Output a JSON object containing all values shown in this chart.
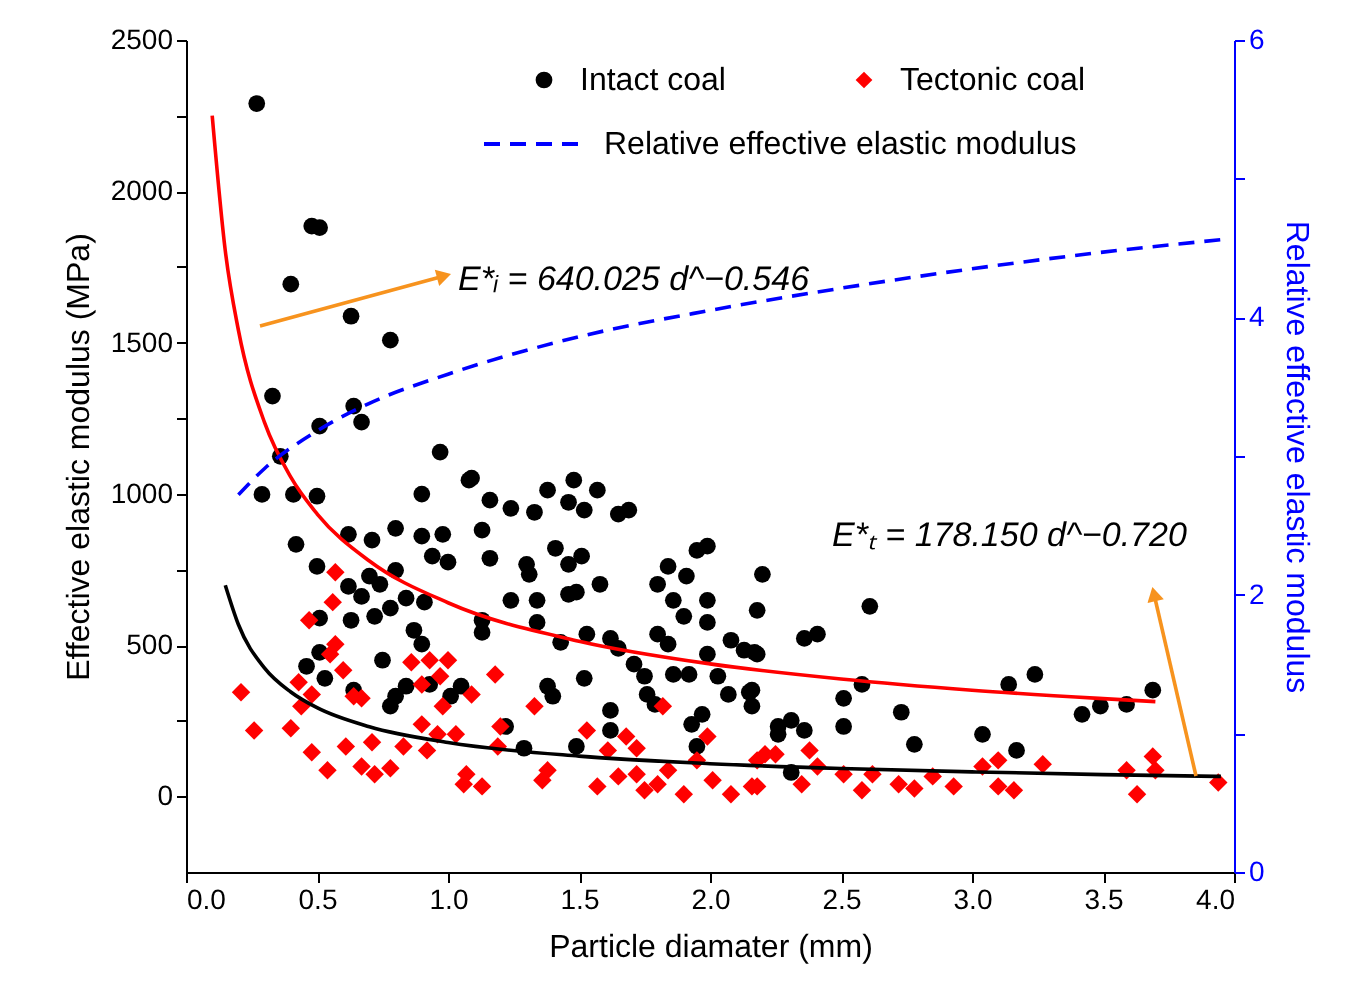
{
  "chart_data": {
    "type": "scatter",
    "xlabel": "Particle diamater (mm)",
    "ylabel": "Effective elastic modulus (MPa)",
    "y2label": "Relative effective elastic modulus",
    "xlim": [
      0,
      4
    ],
    "ylim": [
      -250,
      2500
    ],
    "y2lim": [
      0,
      6
    ],
    "xticks": [
      {
        "value": 0,
        "label": "0.0"
      },
      {
        "value": 0.5,
        "label": "0.5"
      },
      {
        "value": 1,
        "label": "1.0"
      },
      {
        "value": 1.5,
        "label": "1.5"
      },
      {
        "value": 2,
        "label": "2.0"
      },
      {
        "value": 2.5,
        "label": "2.5"
      },
      {
        "value": 3,
        "label": "3.0"
      },
      {
        "value": 3.5,
        "label": "3.5"
      },
      {
        "value": 4,
        "label": "4.0"
      }
    ],
    "yticks": [
      0,
      {
        "value": 250,
        "label": null
      },
      500,
      {
        "value": 750,
        "label": null
      },
      1000,
      {
        "value": 1250,
        "label": null
      },
      1500,
      {
        "value": 1750,
        "label": null
      },
      2000,
      {
        "value": 2250,
        "label": null
      },
      2500
    ],
    "y2ticks": [
      0,
      {
        "value": 1,
        "label": null
      },
      2,
      {
        "value": 3,
        "label": null
      },
      4,
      {
        "value": 5,
        "label": null
      },
      6
    ],
    "grid": false,
    "legend": "top right",
    "annotations": [
      "E*ᵢ = 640.025 d^−0.546",
      "E*ₜ = 178.150 d^−0.720"
    ],
    "series": [
      {
        "name": "Intact coal",
        "marker": "circle",
        "color": "#000000",
        "x": [
          0.27,
          0.48,
          0.51,
          0.4,
          0.63,
          0.78,
          0.33,
          0.64,
          0.67,
          0.51,
          0.36,
          0.97,
          1.09,
          1.48,
          0.29,
          0.41,
          0.5,
          0.9,
          1.08,
          1.16,
          1.24,
          1.33,
          1.38,
          1.57,
          1.46,
          1.52,
          1.65,
          1.69,
          0.42,
          0.62,
          0.71,
          0.8,
          0.9,
          0.98,
          0.94,
          1.0,
          1.13,
          1.16,
          1.41,
          1.51,
          1.46,
          1.58,
          1.3,
          1.31,
          0.5,
          0.62,
          0.7,
          0.74,
          0.8,
          0.84,
          0.91,
          0.67,
          0.72,
          0.78,
          0.63,
          0.51,
          1.24,
          1.34,
          1.46,
          1.49,
          1.34,
          1.13,
          1.13,
          1.43,
          1.53,
          1.62,
          1.65,
          1.84,
          1.95,
          1.99,
          1.91,
          1.8,
          1.86,
          1.9,
          1.99,
          1.99,
          2.2,
          2.18,
          2.08,
          2.13,
          2.17,
          1.99,
          1.8,
          1.84,
          1.71,
          1.75,
          1.86,
          1.92,
          2.03,
          2.07,
          2.16,
          2.16,
          1.76,
          1.79,
          1.97,
          1.93,
          1.95,
          2.26,
          1.62,
          1.62,
          1.52,
          1.38,
          1.4,
          1.29,
          1.49,
          1.22,
          1.05,
          1.01,
          0.8,
          0.84,
          0.78,
          0.87,
          0.9,
          0.75,
          0.46,
          0.53,
          0.51,
          0.64,
          0.93,
          2.61,
          2.36,
          2.41,
          2.18,
          2.15,
          2.51,
          2.58,
          2.51,
          2.73,
          2.78,
          3.04,
          3.17,
          3.14,
          3.24,
          3.42,
          3.49,
          3.59,
          3.69,
          2.31,
          2.36,
          2.26,
          2.31
        ],
        "values": [
          2290,
          1885,
          1880,
          1693,
          1587,
          1508,
          1323,
          1290,
          1237,
          1224,
          1124,
          1138,
          1052,
          1045,
          998,
          998,
          992,
          999,
          1045,
          979,
          952,
          939,
          1012,
          1012,
          972,
          946,
          933,
          946,
          833,
          866,
          847,
          886,
          860,
          866,
          794,
          774,
          880,
          787,
          820,
          794,
          767,
          701,
          767,
          734,
          760,
          694,
          728,
          701,
          747,
          655,
          642,
          661,
          595,
          622,
          582,
          589,
          648,
          648,
          668,
          675,
          575,
          582,
          542,
          509,
          536,
          522,
          489,
          760,
          813,
          827,
          728,
          701,
          648,
          595,
          648,
          575,
          734,
          615,
          516,
          483,
          476,
          470,
          536,
          503,
          437,
          397,
          403,
          403,
          397,
          337,
          351,
          298,
          337,
          304,
          271,
          238,
          165,
          205,
          284,
          218,
          390,
          364,
          331,
          159,
          165,
          231,
          364,
          331,
          331,
          364,
          298,
          549,
          503,
          450,
          430,
          390,
          476,
          351,
          370,
          628,
          522,
          536,
          470,
          344,
          324,
          370,
          231,
          278,
          172,
          205,
          152,
          370,
          403,
          271,
          298,
          304,
          351,
          251,
          218,
          231,
          79
        ]
      },
      {
        "name": "Tectonic coal",
        "marker": "diamond",
        "color": "#ff0000",
        "x": [
          0.21,
          0.26,
          0.4,
          0.43,
          0.48,
          0.44,
          0.57,
          0.56,
          0.47,
          0.57,
          0.55,
          0.6,
          0.64,
          0.67,
          0.48,
          0.54,
          0.61,
          0.67,
          0.72,
          0.78,
          0.71,
          0.83,
          0.86,
          0.93,
          1.0,
          0.9,
          0.97,
          0.98,
          0.9,
          0.96,
          1.03,
          0.92,
          1.09,
          1.18,
          1.2,
          1.19,
          1.33,
          1.07,
          1.13,
          1.06,
          1.38,
          1.36,
          1.53,
          1.61,
          1.68,
          1.72,
          1.82,
          1.57,
          1.65,
          1.75,
          1.72,
          1.84,
          1.99,
          1.95,
          2.01,
          2.08,
          2.16,
          2.18,
          1.9,
          1.8,
          2.21,
          2.25,
          2.18,
          2.38,
          2.41,
          2.35,
          2.51,
          2.58,
          2.62,
          2.72,
          2.78,
          2.85,
          2.93,
          3.04,
          3.1,
          3.1,
          3.16,
          3.27,
          3.59,
          3.63,
          3.69,
          3.7,
          3.94
        ],
        "values": [
          344,
          218,
          225,
          377,
          337,
          298,
          741,
          642,
          582,
          503,
          470,
          417,
          331,
          324,
          146,
          86,
          165,
          99,
          73,
          93,
          179,
          165,
          443,
          450,
          450,
          370,
          397,
          298,
          238,
          205,
          205,
          152,
          337,
          403,
          231,
          165,
          298,
          73,
          33,
          40,
          86,
          53,
          218,
          152,
          198,
          159,
          298,
          33,
          66,
          20,
          73,
          86,
          198,
          119,
          53,
          7,
          33,
          119,
          7,
          40,
          139,
          139,
          33,
          152,
          99,
          40,
          73,
          20,
          73,
          40,
          26,
          66,
          33,
          99,
          119,
          33,
          20,
          106,
          86,
          7,
          132,
          86,
          46
        ]
      },
      {
        "type": "line",
        "line_style": "solid",
        "color": "#ff0000",
        "x": [
          0.1,
          0.15,
          0.2,
          0.3,
          0.4,
          0.5,
          0.7,
          1.0,
          1.5,
          2.0,
          2.5,
          3.0,
          3.5,
          3.7
        ],
        "values": [
          2250,
          1803,
          1541,
          1235,
          1055,
          934,
          778,
          640,
          513,
          438,
          388,
          351,
          323,
          313
        ]
      },
      {
        "type": "line",
        "line_style": "solid",
        "color": "#000000",
        "x": [
          0.15,
          0.2,
          0.3,
          0.4,
          0.5,
          0.7,
          1.0,
          1.5,
          2.0,
          2.5,
          3.0,
          3.5,
          3.95
        ],
        "values": [
          698,
          568,
          424,
          345,
          293,
          230,
          178,
          133,
          108,
          92,
          81,
          72,
          66
        ]
      },
      {
        "name": "Relative effective elastic modulus",
        "type": "line",
        "line_style": "dashed",
        "axis": "y2",
        "color": "#0000ff",
        "x": [
          0.2,
          0.3,
          0.5,
          0.7,
          1.0,
          1.5,
          2.0,
          2.5,
          3.0,
          3.5,
          3.95
        ],
        "values": [
          2.72,
          2.91,
          3.18,
          3.38,
          3.59,
          3.86,
          4.05,
          4.21,
          4.35,
          4.47,
          4.56
        ]
      }
    ]
  }
}
